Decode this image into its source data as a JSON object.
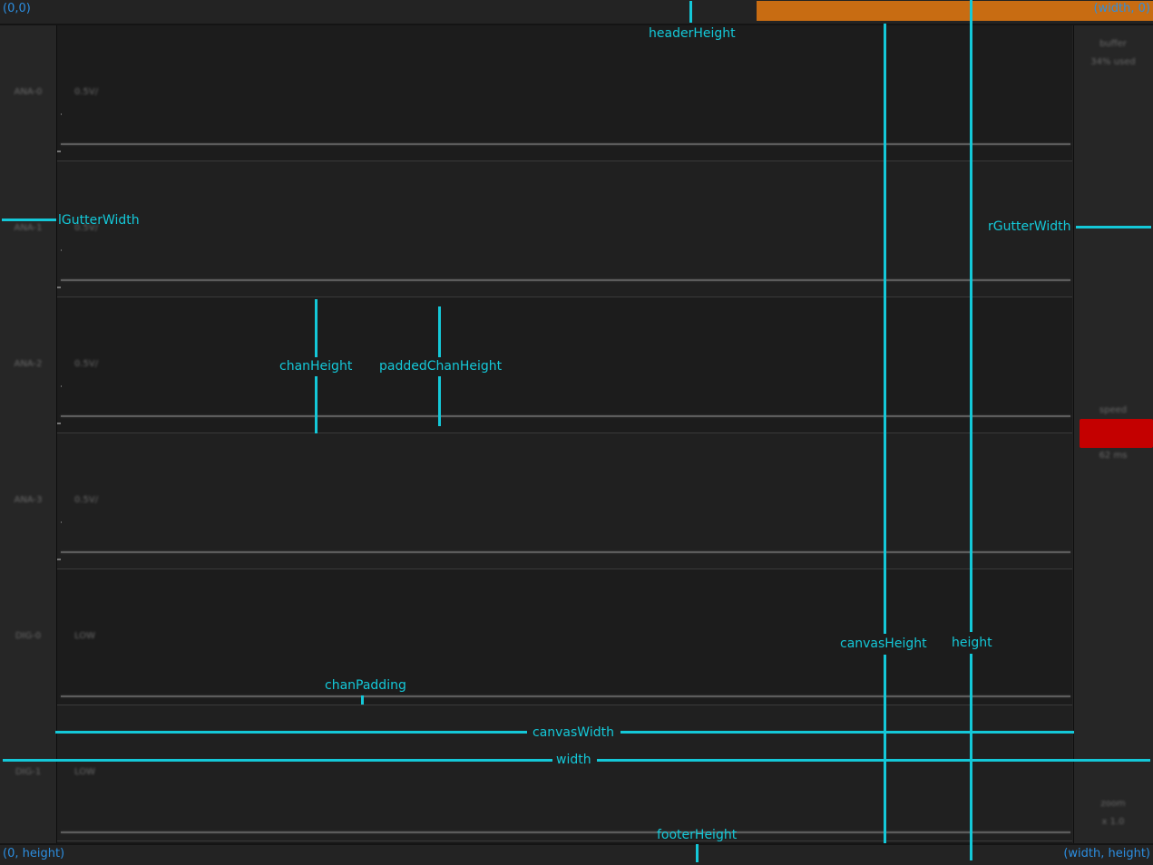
{
  "corners": {
    "top_left": "(0,0)",
    "top_right": "(width, 0)",
    "bottom_left": "(0, height)",
    "bottom_right": "(width, height)"
  },
  "channels": [
    {
      "name": "ANA-0",
      "scale": "0.5V/"
    },
    {
      "name": "ANA-1",
      "scale": "0.5V/"
    },
    {
      "name": "ANA-2",
      "scale": "0.5V/"
    },
    {
      "name": "ANA-3",
      "scale": "0.5V/"
    },
    {
      "name": "DIG-0",
      "scale": "LOW"
    },
    {
      "name": "DIG-1",
      "scale": "LOW"
    }
  ],
  "right_gutter": {
    "buffer_label": "buffer",
    "buffer_used": "34% used",
    "speed_label": "speed",
    "speed_value": "62 ms",
    "zoom_label": "zoom",
    "zoom_value": "x 1.0"
  },
  "annotations": {
    "header_height": "headerHeight",
    "l_gutter_width": "lGutterWidth",
    "r_gutter_width": "rGutterWidth",
    "chan_height": "chanHeight",
    "padded_chan_height": "paddedChanHeight",
    "canvas_height": "canvasHeight",
    "height": "height",
    "chan_padding": "chanPadding",
    "canvas_width": "canvasWidth",
    "width": "width",
    "footer_height": "footerHeight"
  },
  "colors": {
    "annotation": "#14c8d8",
    "corner_label": "#2c8ee0",
    "buffer_bar": "#c86c12",
    "speed_bar": "#c40000"
  }
}
